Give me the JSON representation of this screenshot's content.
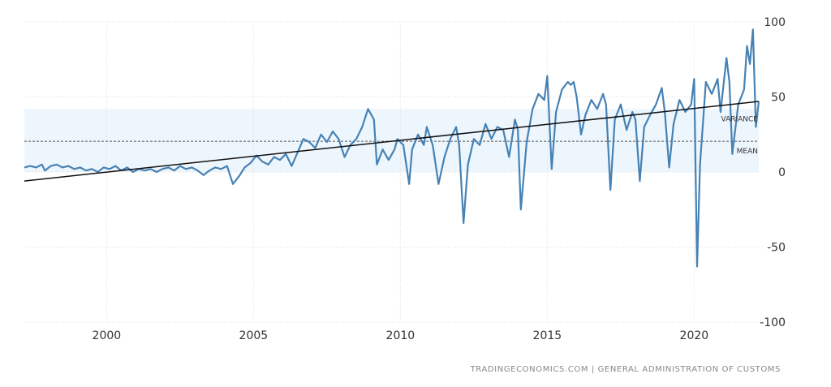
{
  "source": "TRADINGECONOMICS.COM  |  GENERAL ADMINISTRATION OF CUSTOMS",
  "colors": {
    "series": "#4682b4",
    "trend": "#111111",
    "band": "#eef6fd",
    "grid": "#dddddd",
    "mean": "#555555"
  },
  "chart_data": {
    "type": "line",
    "title": "",
    "xlabel": "",
    "ylabel": "",
    "xlim": [
      1997.2,
      2022.2
    ],
    "ylim": [
      -100,
      100
    ],
    "x_ticks": [
      2000,
      2005,
      2010,
      2015,
      2020
    ],
    "x_tick_labels": [
      "2000",
      "2005",
      "2010",
      "2015",
      "2020"
    ],
    "y_ticks": [
      100,
      50,
      0,
      -50,
      -100
    ],
    "y_tick_labels": [
      "100",
      "50",
      "0",
      "-50",
      "-100"
    ],
    "grid": true,
    "band": {
      "label": "VARIANCE",
      "from": 0,
      "to": 42
    },
    "mean": {
      "label": "MEAN",
      "value": 20.5
    },
    "trend": {
      "x": [
        1997.2,
        2022.2
      ],
      "y": [
        -6,
        47
      ]
    },
    "series": [
      {
        "values": [
          [
            1997.2,
            3
          ],
          [
            1997.4,
            4
          ],
          [
            1997.6,
            3
          ],
          [
            1997.8,
            5
          ],
          [
            1997.9,
            1
          ],
          [
            1998.1,
            4
          ],
          [
            1998.3,
            5
          ],
          [
            1998.5,
            3
          ],
          [
            1998.7,
            4
          ],
          [
            1998.9,
            2
          ],
          [
            1999.1,
            3
          ],
          [
            1999.3,
            1
          ],
          [
            1999.5,
            2
          ],
          [
            1999.7,
            0
          ],
          [
            1999.9,
            3
          ],
          [
            2000.1,
            2
          ],
          [
            2000.3,
            4
          ],
          [
            2000.5,
            1
          ],
          [
            2000.7,
            3
          ],
          [
            2000.9,
            0
          ],
          [
            2001.1,
            2
          ],
          [
            2001.3,
            1
          ],
          [
            2001.5,
            2
          ],
          [
            2001.7,
            0
          ],
          [
            2001.9,
            2
          ],
          [
            2002.1,
            3
          ],
          [
            2002.3,
            1
          ],
          [
            2002.5,
            4
          ],
          [
            2002.7,
            2
          ],
          [
            2002.9,
            3
          ],
          [
            2003.1,
            1
          ],
          [
            2003.3,
            -2
          ],
          [
            2003.5,
            1
          ],
          [
            2003.7,
            3
          ],
          [
            2003.9,
            2
          ],
          [
            2004.1,
            4
          ],
          [
            2004.3,
            -8
          ],
          [
            2004.5,
            -3
          ],
          [
            2004.7,
            3
          ],
          [
            2004.9,
            6
          ],
          [
            2005.1,
            11
          ],
          [
            2005.3,
            7
          ],
          [
            2005.5,
            5
          ],
          [
            2005.7,
            10
          ],
          [
            2005.9,
            8
          ],
          [
            2006.1,
            12
          ],
          [
            2006.3,
            4
          ],
          [
            2006.5,
            13
          ],
          [
            2006.7,
            22
          ],
          [
            2006.9,
            20
          ],
          [
            2007.1,
            16
          ],
          [
            2007.3,
            25
          ],
          [
            2007.5,
            20
          ],
          [
            2007.7,
            27
          ],
          [
            2007.9,
            22
          ],
          [
            2008.1,
            10
          ],
          [
            2008.3,
            18
          ],
          [
            2008.5,
            22
          ],
          [
            2008.7,
            30
          ],
          [
            2008.9,
            42
          ],
          [
            2009.1,
            35
          ],
          [
            2009.2,
            5
          ],
          [
            2009.4,
            15
          ],
          [
            2009.6,
            8
          ],
          [
            2009.8,
            15
          ],
          [
            2009.9,
            22
          ],
          [
            2010.1,
            18
          ],
          [
            2010.3,
            -8
          ],
          [
            2010.4,
            15
          ],
          [
            2010.6,
            25
          ],
          [
            2010.8,
            18
          ],
          [
            2010.9,
            30
          ],
          [
            2011.1,
            18
          ],
          [
            2011.3,
            -8
          ],
          [
            2011.5,
            10
          ],
          [
            2011.7,
            22
          ],
          [
            2011.9,
            30
          ],
          [
            2012.0,
            18
          ],
          [
            2012.15,
            -34
          ],
          [
            2012.3,
            5
          ],
          [
            2012.5,
            22
          ],
          [
            2012.7,
            18
          ],
          [
            2012.9,
            32
          ],
          [
            2013.1,
            22
          ],
          [
            2013.3,
            30
          ],
          [
            2013.5,
            28
          ],
          [
            2013.7,
            10
          ],
          [
            2013.9,
            35
          ],
          [
            2014.0,
            28
          ],
          [
            2014.1,
            -25
          ],
          [
            2014.3,
            20
          ],
          [
            2014.5,
            42
          ],
          [
            2014.7,
            52
          ],
          [
            2014.9,
            48
          ],
          [
            2015.0,
            64
          ],
          [
            2015.15,
            2
          ],
          [
            2015.3,
            40
          ],
          [
            2015.5,
            55
          ],
          [
            2015.7,
            60
          ],
          [
            2015.8,
            58
          ],
          [
            2015.9,
            60
          ],
          [
            2016.0,
            50
          ],
          [
            2016.15,
            25
          ],
          [
            2016.3,
            38
          ],
          [
            2016.5,
            48
          ],
          [
            2016.7,
            42
          ],
          [
            2016.9,
            52
          ],
          [
            2017.0,
            45
          ],
          [
            2017.15,
            -12
          ],
          [
            2017.3,
            35
          ],
          [
            2017.5,
            45
          ],
          [
            2017.7,
            28
          ],
          [
            2017.9,
            40
          ],
          [
            2018.0,
            35
          ],
          [
            2018.15,
            -6
          ],
          [
            2018.3,
            30
          ],
          [
            2018.5,
            38
          ],
          [
            2018.7,
            45
          ],
          [
            2018.9,
            56
          ],
          [
            2019.0,
            40
          ],
          [
            2019.15,
            3
          ],
          [
            2019.3,
            32
          ],
          [
            2019.5,
            48
          ],
          [
            2019.7,
            40
          ],
          [
            2019.9,
            45
          ],
          [
            2020.0,
            62
          ],
          [
            2020.1,
            -63
          ],
          [
            2020.2,
            5
          ],
          [
            2020.4,
            60
          ],
          [
            2020.6,
            52
          ],
          [
            2020.8,
            62
          ],
          [
            2020.9,
            40
          ],
          [
            2021.1,
            76
          ],
          [
            2021.2,
            60
          ],
          [
            2021.3,
            12
          ],
          [
            2021.5,
            45
          ],
          [
            2021.7,
            55
          ],
          [
            2021.8,
            84
          ],
          [
            2021.9,
            72
          ],
          [
            2022.0,
            95
          ],
          [
            2022.1,
            30
          ],
          [
            2022.2,
            47
          ]
        ]
      }
    ]
  }
}
